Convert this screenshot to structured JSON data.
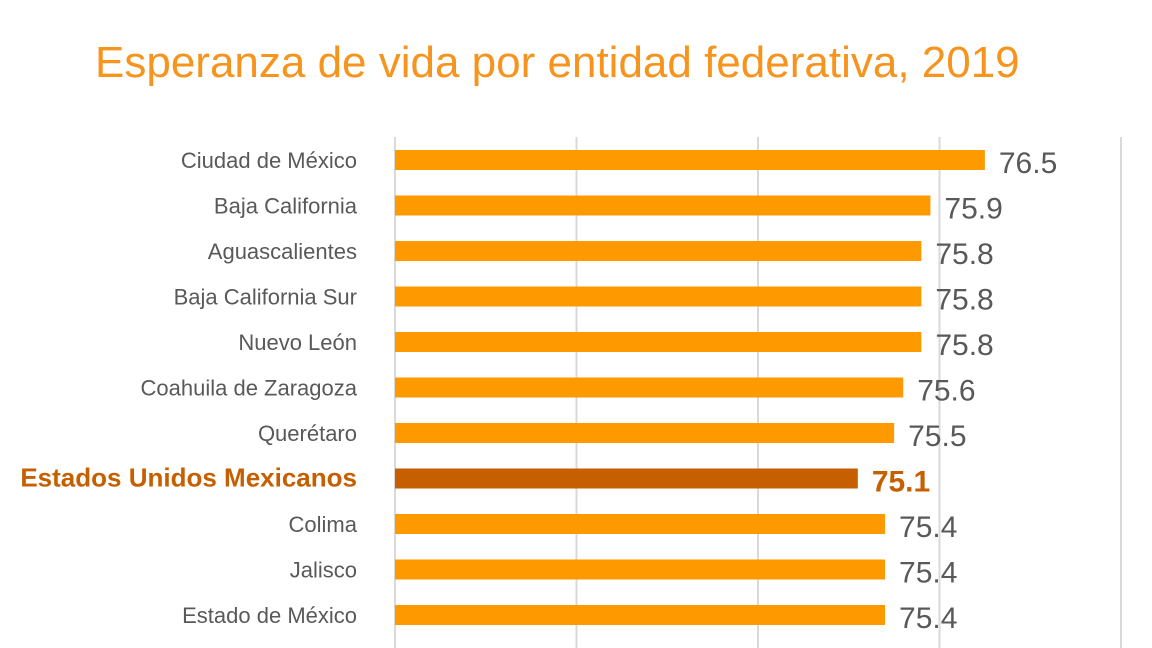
{
  "chart_data": {
    "type": "bar",
    "orientation": "horizontal",
    "title": "Esperanza de vida por entidad federativa, 2019",
    "categories": [
      "Ciudad de México",
      "Baja California",
      "Aguascalientes",
      "Baja California Sur",
      "Nuevo León",
      "Coahuila de Zaragoza",
      "Querétaro",
      "Estados Unidos Mexicanos",
      "Colima",
      "Jalisco",
      "Estado de México"
    ],
    "values": [
      76.5,
      75.9,
      75.8,
      75.8,
      75.8,
      75.6,
      75.5,
      75.1,
      75.4,
      75.4,
      75.4
    ],
    "highlight": "Estados Unidos Mexicanos",
    "xlim": [
      70,
      78
    ],
    "gridlines": [
      70,
      72,
      74,
      76,
      78
    ],
    "grid": true,
    "colors": {
      "bar": "#FF9900",
      "highlight": "#C65F00",
      "title": "#F7941D",
      "label": "#595959",
      "grid": "#D9D9D9"
    }
  }
}
